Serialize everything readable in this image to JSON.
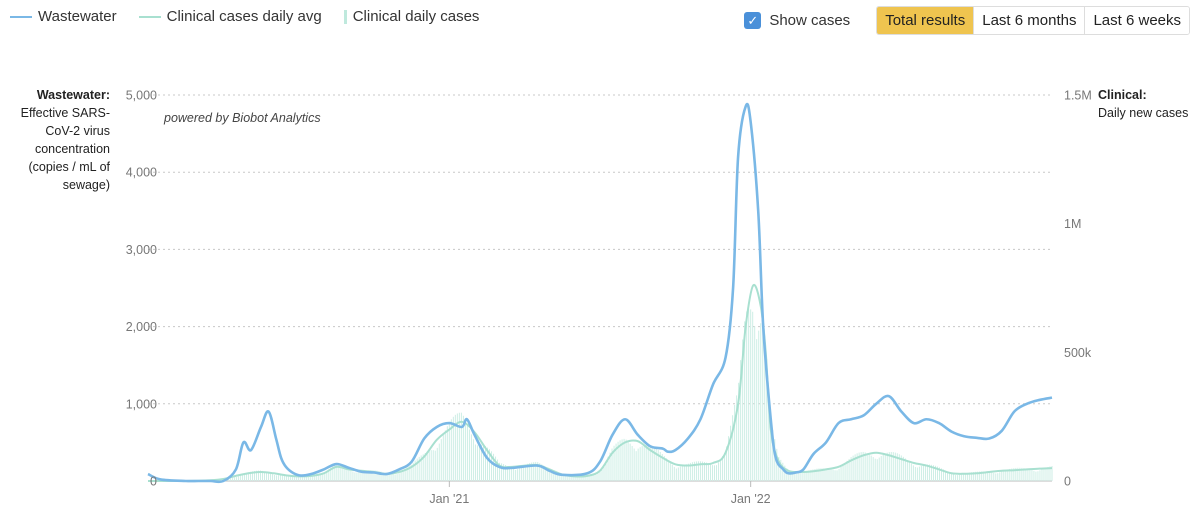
{
  "legend": {
    "wastewater": "Wastewater",
    "clinical_avg": "Clinical cases daily avg",
    "clinical_daily": "Clinical daily cases"
  },
  "controls": {
    "show_cases_label": "Show cases",
    "show_cases_checked": true,
    "range_buttons": [
      "Total results",
      "Last 6 months",
      "Last 6 weeks"
    ],
    "active_range": "Total results"
  },
  "left_axis_title": {
    "bold": "Wastewater:",
    "text": "Effective SARS-CoV-2 virus concentration (copies / mL of sewage)"
  },
  "right_axis_title": {
    "bold": "Clinical:",
    "text": "Daily new cases"
  },
  "watermark": "powered by Biobot Analytics",
  "colors": {
    "wastewater": "#7ab8e6",
    "clinical_avg": "#a8e0d0",
    "clinical_bars": "#cdeee5",
    "checkbox": "#4a90d9",
    "active_button": "#efc44f"
  },
  "chart_data": {
    "type": "line",
    "title": "",
    "left_axis": {
      "ticks": [
        0,
        1000,
        2000,
        3000,
        4000,
        5000
      ],
      "tick_labels": [
        "0",
        "1,000",
        "2,000",
        "3,000",
        "4,000",
        "5,000"
      ],
      "ylim": [
        0,
        5000
      ]
    },
    "right_axis": {
      "ticks": [
        0,
        500000,
        1000000,
        1500000
      ],
      "tick_labels": [
        "0",
        "500k",
        "1M",
        "1.5M"
      ],
      "ylim": [
        0,
        1500000
      ]
    },
    "x_ticks": [
      {
        "month": 10.5,
        "label": "Jan '21"
      },
      {
        "month": 22.5,
        "label": "Jan '22"
      }
    ],
    "xlim": [
      -1.5,
      34.5
    ],
    "series": [
      {
        "name": "Wastewater",
        "axis": "left",
        "x": [
          -1.5,
          -1,
          0,
          0.5,
          1,
          1.5,
          2,
          2.3,
          2.6,
          3,
          3.3,
          3.6,
          3.8,
          4,
          4.3,
          4.6,
          5,
          5.5,
          6,
          6.5,
          7,
          7.5,
          8,
          8.5,
          9,
          9.5,
          10,
          10.5,
          11,
          11.2,
          11.5,
          12,
          12.5,
          13,
          14,
          14.5,
          15,
          16,
          16.5,
          17,
          17.5,
          18,
          18.5,
          19,
          19.2,
          19.5,
          20,
          20.5,
          21,
          21.5,
          21.8,
          22,
          22.3,
          22.5,
          22.8,
          23,
          23.3,
          23.5,
          23.8,
          24,
          24.3,
          24.6,
          25,
          25.5,
          26,
          26.5,
          27,
          27.5,
          28,
          28.5,
          29,
          29.5,
          30,
          30.5,
          31,
          31.5,
          32,
          32.5,
          33,
          33.5,
          34,
          34.5
        ],
        "y": [
          90,
          20,
          0,
          0,
          0,
          0,
          150,
          500,
          400,
          700,
          900,
          550,
          300,
          180,
          100,
          70,
          90,
          150,
          220,
          170,
          120,
          110,
          90,
          150,
          250,
          550,
          700,
          750,
          700,
          800,
          600,
          300,
          180,
          170,
          200,
          130,
          80,
          100,
          250,
          600,
          800,
          600,
          450,
          420,
          380,
          400,
          550,
          800,
          1250,
          1600,
          2500,
          4200,
          4850,
          4650,
          3500,
          2000,
          800,
          300,
          150,
          100,
          110,
          150,
          350,
          500,
          750,
          800,
          850,
          1000,
          1100,
          900,
          750,
          800,
          750,
          640,
          580,
          560,
          550,
          650,
          900,
          1000,
          1050,
          1080
        ]
      },
      {
        "name": "Clinical cases daily avg",
        "axis": "right",
        "x": [
          -1.5,
          0,
          1,
          1.5,
          2,
          2.5,
          3,
          3.5,
          4,
          4.5,
          5,
          5.5,
          6,
          6.5,
          7,
          7.5,
          8,
          8.5,
          9,
          9.5,
          10,
          10.5,
          11,
          11.5,
          12,
          12.5,
          13,
          13.5,
          14,
          14.5,
          15,
          15.5,
          16,
          16.5,
          17,
          17.5,
          18,
          18.5,
          19,
          19.5,
          20,
          20.5,
          21,
          21.5,
          22,
          22.3,
          22.6,
          22.9,
          23.1,
          23.3,
          23.6,
          24,
          24.5,
          25,
          25.5,
          26,
          26.5,
          27,
          27.5,
          28,
          28.5,
          29,
          29.5,
          30,
          30.5,
          31,
          31.5,
          32,
          32.5,
          33,
          33.5,
          34,
          34.5
        ],
        "y": [
          0,
          0,
          3000,
          8000,
          20000,
          30000,
          35000,
          30000,
          22000,
          18000,
          20000,
          30000,
          55000,
          45000,
          40000,
          35000,
          28000,
          35000,
          55000,
          95000,
          160000,
          200000,
          230000,
          190000,
          120000,
          60000,
          55000,
          60000,
          62000,
          45000,
          25000,
          18000,
          20000,
          40000,
          110000,
          150000,
          155000,
          120000,
          90000,
          65000,
          60000,
          65000,
          70000,
          110000,
          300000,
          600000,
          760000,
          680000,
          500000,
          200000,
          80000,
          40000,
          35000,
          38000,
          45000,
          55000,
          80000,
          100000,
          110000,
          100000,
          85000,
          70000,
          60000,
          45000,
          30000,
          28000,
          30000,
          35000,
          40000,
          42000,
          45000,
          48000,
          50000
        ]
      }
    ]
  }
}
